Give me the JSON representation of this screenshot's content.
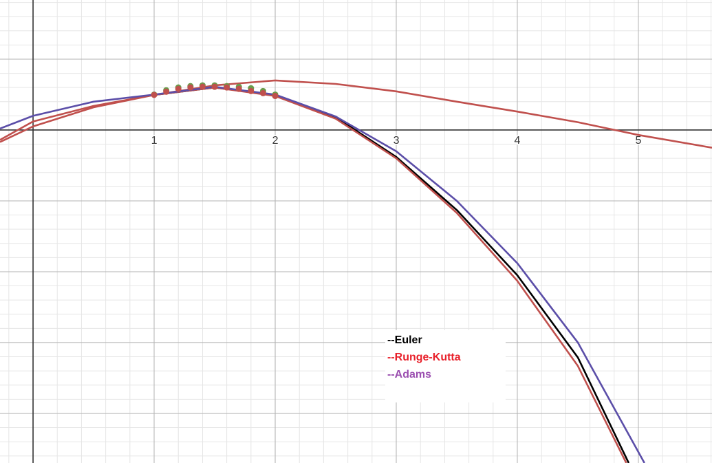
{
  "chart_data": {
    "type": "line",
    "xlim": [
      -0.273,
      5.608
    ],
    "ylim": [
      -4.7,
      1.835
    ],
    "xticks": [
      1,
      2,
      3,
      4,
      5
    ],
    "yticks": [
      -4,
      -3,
      -2,
      -1,
      0,
      1
    ],
    "ytick_labels": false,
    "grid": true,
    "minor_per_major": 5,
    "legend": "lower right",
    "series": [
      {
        "color": "#c0504d",
        "x": [
          -0.273,
          0,
          0.5,
          1,
          1.5,
          2,
          2.5,
          3,
          3.5,
          4,
          4.5,
          5,
          5.608
        ],
        "values": [
          -0.14,
          0.12,
          0.34,
          0.495,
          0.63,
          0.7,
          0.65,
          0.545,
          0.4,
          0.26,
          0.11,
          -0.07,
          -0.25
        ]
      },
      {
        "name": "--Euler",
        "color": "#000000",
        "label_color": "#000000",
        "x": [
          1,
          1.5,
          2,
          2.5,
          3,
          3.5,
          4,
          4.5,
          4.92
        ],
        "values": [
          0.495,
          0.6,
          0.495,
          0.18,
          -0.38,
          -1.13,
          -2.05,
          -3.21,
          -4.7
        ]
      },
      {
        "name": "--Runge-Kutta",
        "color": "#c0504d",
        "label_color": "#e8202a",
        "x": [
          -0.273,
          0,
          0.5,
          1,
          1.5,
          2,
          2.5,
          3,
          3.5,
          4,
          4.5,
          4.9
        ],
        "values": [
          -0.17,
          0.05,
          0.32,
          0.495,
          0.6,
          0.48,
          0.16,
          -0.4,
          -1.17,
          -2.13,
          -3.33,
          -4.7
        ]
      },
      {
        "name": "--Adams",
        "color": "#5b4ea8",
        "label_color": "#9b4fb0",
        "x": [
          -0.273,
          0,
          0.5,
          1,
          1.5,
          2,
          2.5,
          3,
          3.5,
          4,
          4.5,
          5.05
        ],
        "values": [
          0.02,
          0.2,
          0.4,
          0.5,
          0.61,
          0.5,
          0.19,
          -0.3,
          -1.0,
          -1.88,
          -3.0,
          -4.7
        ]
      },
      {
        "color": "#6a9a4a",
        "line": false,
        "marker": true,
        "x": [
          1,
          1.1,
          1.2,
          1.3,
          1.4,
          1.5,
          1.6,
          1.7,
          1.8,
          1.9,
          2
        ],
        "values": [
          0.5,
          0.56,
          0.6,
          0.62,
          0.63,
          0.63,
          0.62,
          0.61,
          0.59,
          0.55,
          0.5
        ]
      },
      {
        "color": "#c0504d",
        "line": false,
        "marker": true,
        "x": [
          1,
          1.1,
          1.2,
          1.3,
          1.4,
          1.5,
          1.6,
          1.7,
          1.8,
          1.9,
          2
        ],
        "values": [
          0.495,
          0.54,
          0.58,
          0.6,
          0.61,
          0.61,
          0.6,
          0.58,
          0.55,
          0.52,
          0.48
        ]
      }
    ]
  }
}
